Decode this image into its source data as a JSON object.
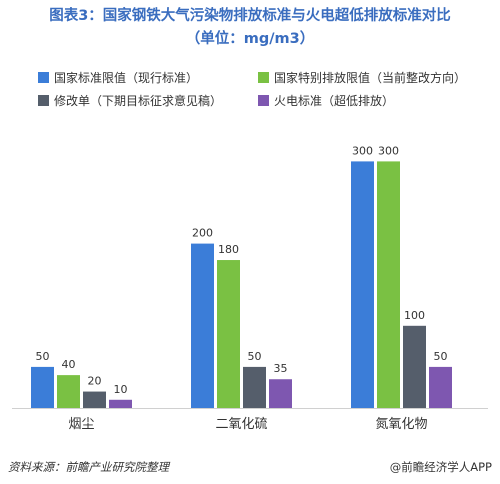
{
  "title_line1": "图表3：国家钢铁大气污染物排放标准与火电超低排放标准对比",
  "title_line2": "（单位：mg/m3）",
  "source": "资料来源：前瞻产业研究院整理",
  "brand": "@前瞻经济学人APP",
  "chart_data": {
    "type": "bar",
    "categories": [
      "烟尘",
      "二氧化硫",
      "氮氧化物"
    ],
    "series": [
      {
        "name": "国家标准限值（现行标准）",
        "color": "#3b7dd8",
        "values": [
          50,
          200,
          300
        ]
      },
      {
        "name": "国家特别排放限值（当前整改方向）",
        "color": "#7ac143",
        "values": [
          40,
          180,
          300
        ]
      },
      {
        "name": "修改单（下期目标征求意见稿）",
        "color": "#555e6b",
        "values": [
          20,
          50,
          100
        ]
      },
      {
        "name": "火电标准（超低排放）",
        "color": "#7e57b0",
        "values": [
          10,
          35,
          50
        ]
      }
    ],
    "ylim": [
      0,
      300
    ],
    "grid": false,
    "legend": "top"
  }
}
